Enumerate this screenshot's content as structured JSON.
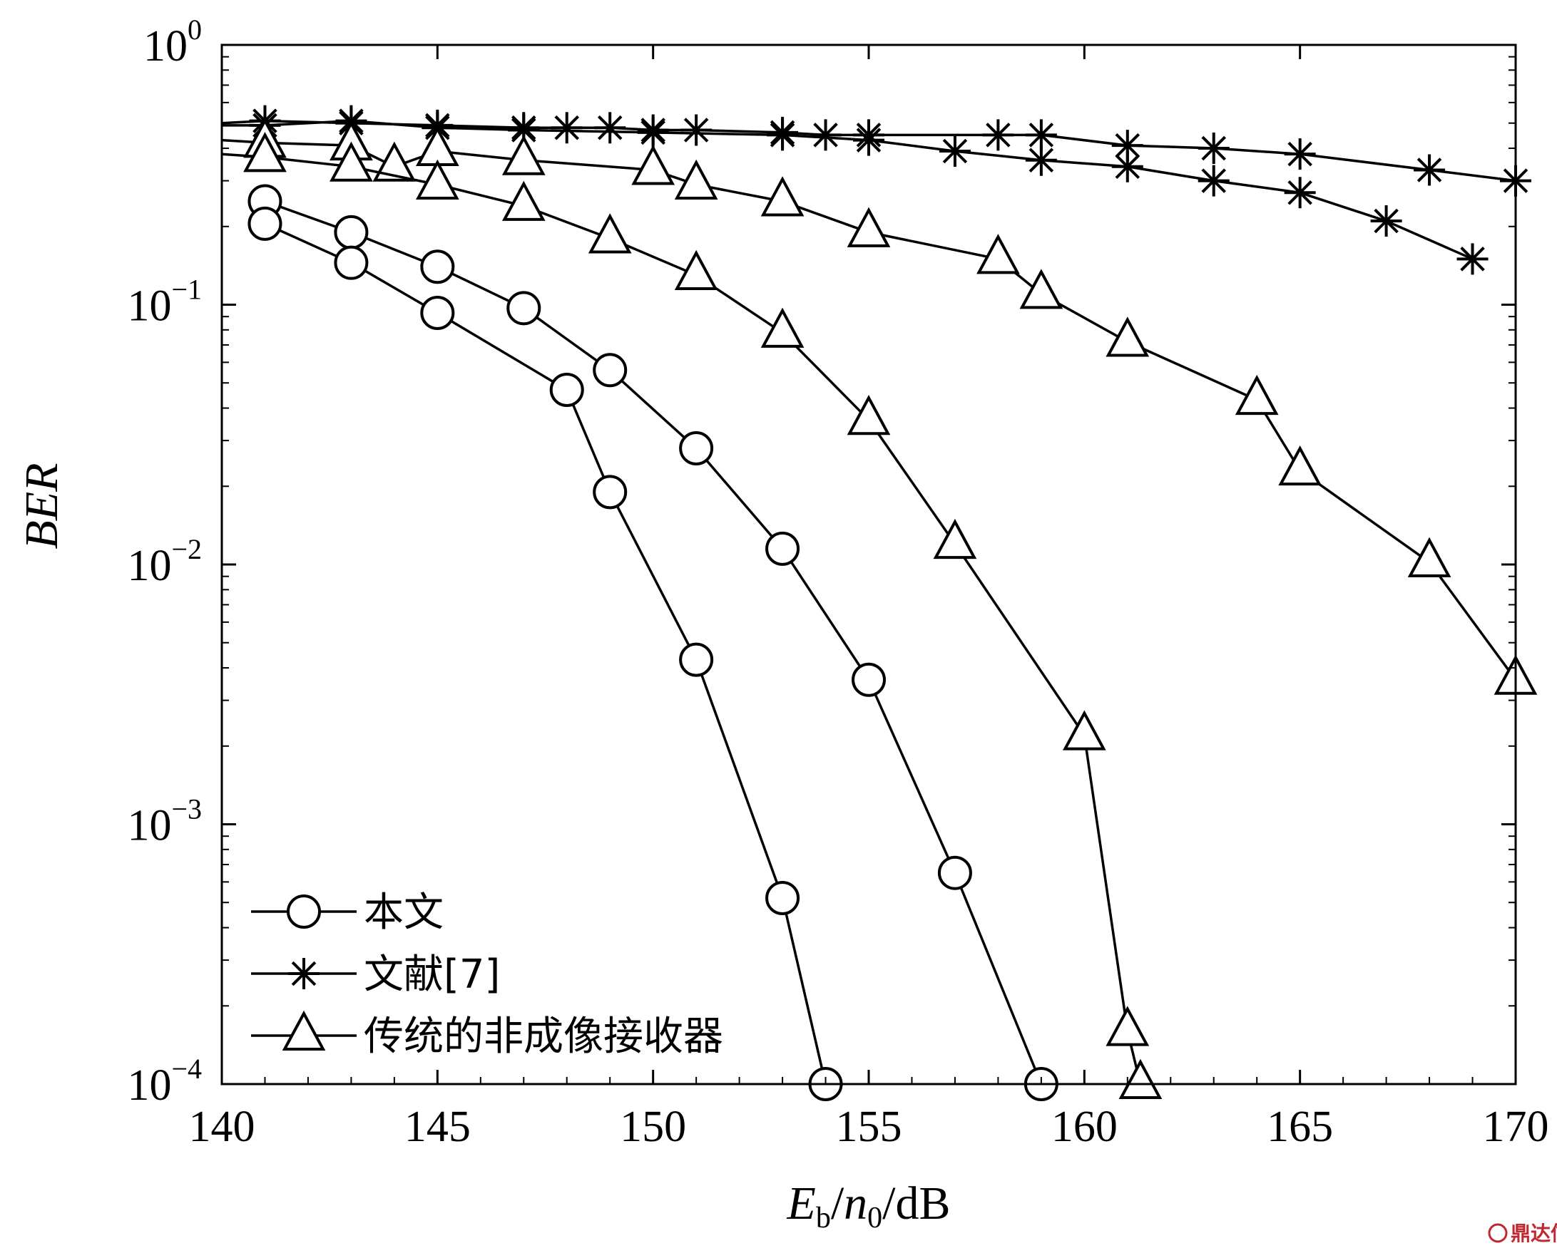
{
  "chart_data": {
    "type": "line",
    "x_scale": "linear",
    "y_scale": "log",
    "xlim": [
      140,
      170
    ],
    "ylim": [
      0.0001,
      1
    ],
    "xlabel_parts": [
      "E",
      "b",
      "/",
      "n",
      "0",
      "/dB"
    ],
    "ylabel": "BER",
    "x_ticks": [
      140,
      145,
      150,
      155,
      160,
      165,
      170
    ],
    "x_tick_labels": [
      "140",
      "145",
      "150",
      "155",
      "160",
      "165",
      "170"
    ],
    "y_ticks": [
      1,
      0.1,
      0.01,
      0.001,
      0.0001
    ],
    "y_tick_labels": [
      {
        "base": "10",
        "exp": "0"
      },
      {
        "base": "10",
        "exp": "−1"
      },
      {
        "base": "10",
        "exp": "−2"
      },
      {
        "base": "10",
        "exp": "−3"
      },
      {
        "base": "10",
        "exp": "−4"
      }
    ],
    "grid": false,
    "legend_position": "bottom-left",
    "series": [
      {
        "name": "本文",
        "marker": "circle",
        "x": [
          141,
          143,
          145,
          147,
          149,
          151,
          153,
          155,
          157,
          159
        ],
        "y": [
          0.25,
          0.19,
          0.14,
          0.097,
          0.056,
          0.028,
          0.0115,
          0.0036,
          0.00065,
          0.0001
        ]
      },
      {
        "name": "本文",
        "marker": "circle",
        "x": [
          141,
          143,
          145,
          148,
          149,
          151,
          153,
          154
        ],
        "y": [
          0.205,
          0.145,
          0.093,
          0.047,
          0.019,
          0.0043,
          0.00052,
          0.0001
        ]
      },
      {
        "name": "文献[7]",
        "marker": "star",
        "x": [
          140,
          141,
          143,
          145,
          147,
          148,
          149,
          150,
          151,
          153,
          154,
          155,
          158,
          159,
          161,
          163,
          165,
          168,
          170
        ],
        "y": [
          0.5,
          0.51,
          0.5,
          0.49,
          0.48,
          0.48,
          0.48,
          0.47,
          0.47,
          0.46,
          0.45,
          0.45,
          0.45,
          0.45,
          0.41,
          0.4,
          0.38,
          0.33,
          0.3
        ]
      },
      {
        "name": "文献[7]",
        "marker": "star",
        "x": [
          140,
          141,
          143,
          145,
          147,
          150,
          153,
          155,
          157,
          159,
          161,
          163,
          165,
          167,
          169
        ],
        "y": [
          0.49,
          0.49,
          0.51,
          0.48,
          0.47,
          0.46,
          0.45,
          0.43,
          0.39,
          0.36,
          0.34,
          0.3,
          0.27,
          0.21,
          0.15
        ]
      },
      {
        "name": "传统的非成像接收器",
        "marker": "triangle",
        "x": [
          140,
          141,
          143,
          144,
          145,
          147,
          150,
          151,
          153,
          155,
          158,
          159,
          161,
          164,
          165,
          168,
          170
        ],
        "y": [
          0.43,
          0.42,
          0.41,
          0.34,
          0.39,
          0.36,
          0.33,
          0.29,
          0.25,
          0.19,
          0.15,
          0.11,
          0.072,
          0.043,
          0.023,
          0.0102,
          0.0036
        ]
      },
      {
        "name": "传统的非成像接收器",
        "marker": "triangle",
        "x": [
          140,
          141,
          143,
          145,
          147,
          149,
          151,
          153,
          155,
          157,
          160,
          161,
          161.3
        ],
        "y": [
          0.38,
          0.37,
          0.34,
          0.29,
          0.24,
          0.18,
          0.13,
          0.078,
          0.036,
          0.012,
          0.0022,
          0.00016,
          0.0001
        ]
      }
    ],
    "legend": [
      {
        "label": "本文",
        "marker": "circle"
      },
      {
        "label": "文献[7]",
        "marker": "star"
      },
      {
        "label": "传统的非成像接收器",
        "marker": "triangle"
      }
    ]
  },
  "watermark": {
    "text": "鼎达信"
  }
}
